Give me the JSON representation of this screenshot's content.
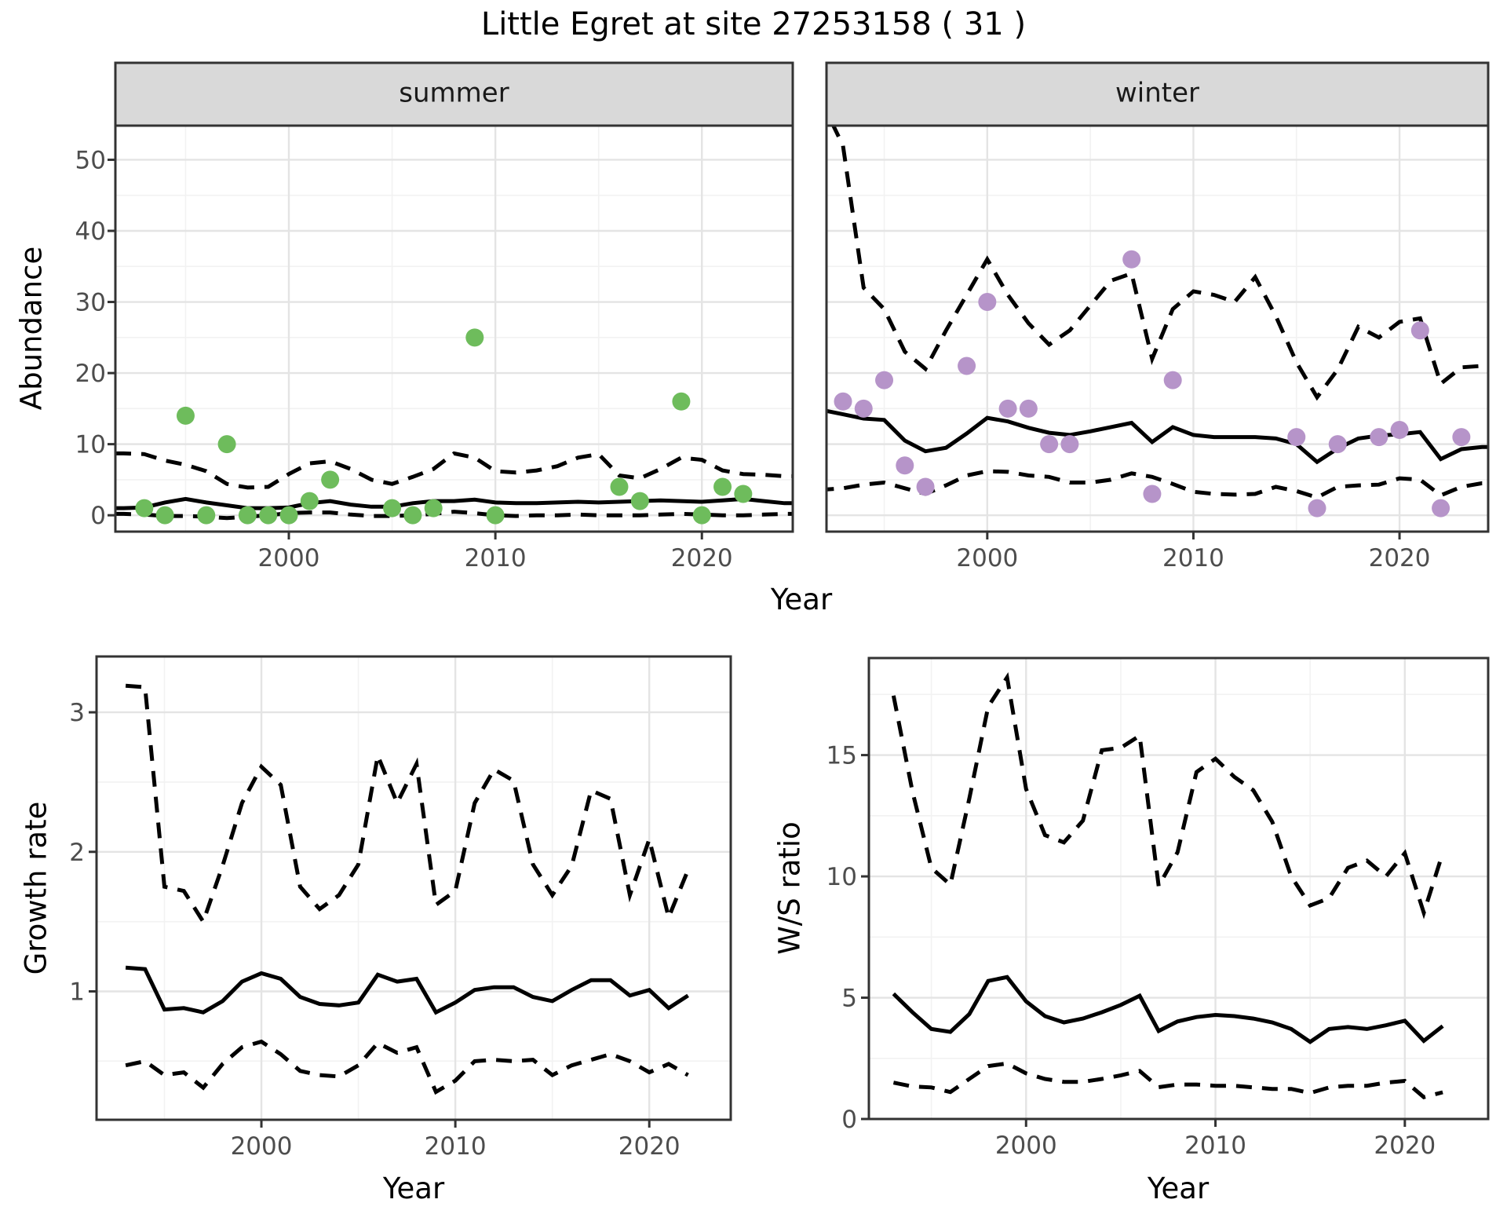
{
  "title": "Little Egret at site 27253158 ( 31 )",
  "colors": {
    "summer_point": "#6ebc5c",
    "winter_point": "#b694c9",
    "line": "#000000",
    "strip_bg": "#d9d9d9",
    "panel_bg": "#ffffff",
    "grid_major": "#e4e4e4",
    "grid_minor": "#f2f2f2",
    "panel_border": "#333333",
    "tick_mark": "#333333",
    "tick_text": "#4d4d4d"
  },
  "axis": {
    "year_label": "Year",
    "abundance_label": "Abundance",
    "growth_label": "Growth rate",
    "ws_label": "W/S ratio",
    "x_tick_labels": [
      "2000",
      "2010",
      "2020"
    ],
    "abundance_tick_labels": [
      "0",
      "10",
      "20",
      "30",
      "40",
      "50"
    ],
    "growth_tick_labels": [
      "1",
      "2",
      "3"
    ],
    "ws_tick_labels": [
      "0",
      "5",
      "10",
      "15"
    ]
  },
  "facets": [
    {
      "label": "summer"
    },
    {
      "label": "winter"
    }
  ],
  "chart_data": [
    {
      "id": "abundance_summer",
      "type": "scatter",
      "title": "summer",
      "xlabel": "Year",
      "ylabel": "Abundance",
      "xlim": [
        1991.6,
        2024.4
      ],
      "ylim": [
        -2.3,
        54.8
      ],
      "x_major": [
        2000,
        2010,
        2020
      ],
      "x_minor": [
        1995,
        2005,
        2015
      ],
      "y_major": [
        0,
        10,
        20,
        30,
        40,
        50
      ],
      "y_minor": [
        5,
        15,
        25,
        35,
        45
      ],
      "points": {
        "years": [
          1993,
          1994,
          1995,
          1996,
          1997,
          1998,
          1999,
          2000,
          2001,
          2002,
          2005,
          2006,
          2007,
          2009,
          2010,
          2016,
          2017,
          2019,
          2020,
          2021,
          2022
        ],
        "values": [
          1,
          0,
          14,
          0,
          10,
          0,
          0,
          0,
          2,
          5,
          1,
          0,
          1,
          25,
          0,
          4,
          2,
          16,
          0,
          4,
          3
        ]
      },
      "fit_years": [
        1992,
        1993,
        1994,
        1995,
        1996,
        1997,
        1998,
        1999,
        2000,
        2001,
        2002,
        2003,
        2004,
        2005,
        2006,
        2007,
        2008,
        2009,
        2010,
        2011,
        2012,
        2013,
        2014,
        2015,
        2016,
        2017,
        2018,
        2019,
        2020,
        2021,
        2022,
        2023,
        2024
      ],
      "fit": [
        1.0,
        1.1,
        1.8,
        2.3,
        1.8,
        1.4,
        1.0,
        1.0,
        1.1,
        1.7,
        2.0,
        1.5,
        1.2,
        1.2,
        1.7,
        2.0,
        2.0,
        2.2,
        1.8,
        1.7,
        1.7,
        1.8,
        1.9,
        1.8,
        1.9,
        2.0,
        2.1,
        2.0,
        1.9,
        2.1,
        2.3,
        2.0,
        1.7
      ],
      "ci_hi": [
        8.7,
        8.6,
        7.7,
        7.1,
        6.2,
        4.4,
        3.9,
        4.0,
        5.8,
        7.3,
        7.6,
        6.5,
        5.0,
        4.4,
        5.4,
        6.5,
        8.7,
        8.1,
        6.2,
        6.0,
        6.3,
        6.9,
        8.1,
        8.6,
        5.6,
        5.2,
        6.5,
        8.1,
        7.8,
        6.3,
        5.8,
        5.7,
        5.5
      ],
      "ci_lo": [
        0.2,
        0.1,
        -0.1,
        -0.1,
        -0.2,
        -0.4,
        -0.2,
        0.0,
        0.3,
        0.4,
        0.4,
        0.1,
        -0.1,
        -0.1,
        0.0,
        0.2,
        0.5,
        0.3,
        0.0,
        -0.1,
        0.0,
        0.0,
        0.1,
        0.0,
        0.0,
        0.0,
        0.1,
        0.2,
        0.1,
        0.0,
        0.0,
        0.1,
        0.2
      ],
      "extend_to_edges": true
    },
    {
      "id": "abundance_winter",
      "type": "scatter",
      "title": "winter",
      "xlabel": "Year",
      "ylabel": "Abundance",
      "xlim": [
        1992.2,
        2024.3
      ],
      "ylim": [
        -2.3,
        54.8
      ],
      "x_major": [
        2000,
        2010,
        2020
      ],
      "x_minor": [
        1995,
        2005,
        2015
      ],
      "y_major": [
        0,
        10,
        20,
        30,
        40,
        50
      ],
      "y_minor": [
        5,
        15,
        25,
        35,
        45
      ],
      "points": {
        "years": [
          1993,
          1994,
          1995,
          1996,
          1997,
          1999,
          2000,
          2001,
          2002,
          2003,
          2004,
          2007,
          2008,
          2009,
          2015,
          2016,
          2017,
          2019,
          2020,
          2021,
          2022,
          2023
        ],
        "values": [
          16,
          15,
          19,
          7,
          4,
          21,
          30,
          15,
          15,
          10,
          10,
          36,
          3,
          19,
          11,
          1,
          10,
          11,
          12,
          26,
          1,
          11
        ]
      },
      "fit_years": [
        1992,
        1993,
        1994,
        1995,
        1996,
        1997,
        1998,
        1999,
        2000,
        2001,
        2002,
        2003,
        2004,
        2005,
        2006,
        2007,
        2008,
        2009,
        2010,
        2011,
        2012,
        2013,
        2014,
        2015,
        2016,
        2017,
        2018,
        2019,
        2020,
        2021,
        2022,
        2023,
        2024
      ],
      "fit": [
        14.8,
        14.2,
        13.6,
        13.4,
        10.5,
        9.0,
        9.5,
        11.5,
        13.7,
        13.2,
        12.3,
        11.6,
        11.3,
        11.8,
        12.4,
        13.0,
        10.3,
        12.4,
        11.3,
        11.0,
        11.0,
        11.0,
        10.8,
        10.0,
        7.5,
        9.4,
        10.8,
        11.2,
        11.4,
        11.7,
        7.9,
        9.3,
        9.6
      ],
      "ci_hi": [
        58,
        52,
        32,
        29,
        23,
        20.6,
        26,
        31,
        36,
        31,
        27,
        24,
        26,
        29.5,
        33,
        34,
        22,
        29,
        31.5,
        31,
        30,
        33.5,
        28,
        21.5,
        16.6,
        20.5,
        26.5,
        25,
        27.2,
        27.7,
        18.5,
        20.8,
        21
      ],
      "ci_lo": [
        3.6,
        3.8,
        4.3,
        4.6,
        3.8,
        3.0,
        4.2,
        5.6,
        6.2,
        6.1,
        5.6,
        5.4,
        4.6,
        4.6,
        5.0,
        5.9,
        5.4,
        4.4,
        3.3,
        3.0,
        2.9,
        3.0,
        4.0,
        3.4,
        2.5,
        4.0,
        4.2,
        4.3,
        5.2,
        5.0,
        2.8,
        4.0,
        4.5
      ],
      "extend_to_edges": true
    },
    {
      "id": "growth_rate",
      "type": "line",
      "title": "",
      "xlabel": "Year",
      "ylabel": "Growth rate",
      "xlim": [
        1991.5,
        2024.2
      ],
      "ylim": [
        0.08,
        3.4
      ],
      "x_major": [
        2000,
        2010,
        2020
      ],
      "x_minor": [
        1995,
        2005,
        2015
      ],
      "y_major": [
        1,
        2,
        3
      ],
      "y_minor": [
        0.5,
        1.5,
        2.5
      ],
      "fit_years": [
        1993,
        1994,
        1995,
        1996,
        1997,
        1998,
        1999,
        2000,
        2001,
        2002,
        2003,
        2004,
        2005,
        2006,
        2007,
        2008,
        2009,
        2010,
        2011,
        2012,
        2013,
        2014,
        2015,
        2016,
        2017,
        2018,
        2019,
        2020,
        2021,
        2022
      ],
      "fit": [
        1.17,
        1.16,
        0.87,
        0.88,
        0.85,
        0.93,
        1.07,
        1.13,
        1.09,
        0.96,
        0.91,
        0.9,
        0.92,
        1.12,
        1.07,
        1.09,
        0.85,
        0.92,
        1.01,
        1.03,
        1.03,
        0.96,
        0.93,
        1.01,
        1.08,
        1.08,
        0.97,
        1.01,
        0.88,
        0.97
      ],
      "ci_hi": [
        3.19,
        3.18,
        1.75,
        1.72,
        1.5,
        1.9,
        2.35,
        2.61,
        2.48,
        1.75,
        1.59,
        1.69,
        1.91,
        2.69,
        2.35,
        2.63,
        1.62,
        1.72,
        2.35,
        2.59,
        2.51,
        1.91,
        1.69,
        1.9,
        2.44,
        2.38,
        1.69,
        2.09,
        1.53,
        1.87
      ],
      "ci_lo": [
        0.47,
        0.5,
        0.4,
        0.42,
        0.31,
        0.48,
        0.6,
        0.64,
        0.55,
        0.43,
        0.4,
        0.39,
        0.47,
        0.63,
        0.56,
        0.6,
        0.28,
        0.36,
        0.5,
        0.51,
        0.5,
        0.51,
        0.4,
        0.47,
        0.51,
        0.55,
        0.5,
        0.42,
        0.48,
        0.4
      ],
      "extend_to_edges": false
    },
    {
      "id": "ws_ratio",
      "type": "line",
      "title": "",
      "xlabel": "Year",
      "ylabel": "W/S ratio",
      "xlim": [
        1991.7,
        2024.4
      ],
      "ylim": [
        0,
        19
      ],
      "x_major": [
        2000,
        2010,
        2020
      ],
      "x_minor": [
        1995,
        2005,
        2015
      ],
      "y_major": [
        0,
        5,
        10,
        15
      ],
      "y_minor": [
        2.5,
        7.5,
        12.5,
        17.5
      ],
      "fit_years": [
        1993,
        1994,
        1995,
        1996,
        1997,
        1998,
        1999,
        2000,
        2001,
        2002,
        2003,
        2004,
        2005,
        2006,
        2007,
        2008,
        2009,
        2010,
        2011,
        2012,
        2013,
        2014,
        2015,
        2016,
        2017,
        2018,
        2019,
        2020,
        2021,
        2022
      ],
      "fit": [
        5.16,
        4.4,
        3.71,
        3.59,
        4.32,
        5.69,
        5.85,
        4.85,
        4.24,
        3.98,
        4.14,
        4.4,
        4.7,
        5.08,
        3.63,
        4.02,
        4.2,
        4.29,
        4.24,
        4.14,
        3.98,
        3.71,
        3.18,
        3.71,
        3.79,
        3.71,
        3.86,
        4.05,
        3.22,
        3.83
      ],
      "ci_hi": [
        17.45,
        13.5,
        10.35,
        9.66,
        13.2,
        17.0,
        18.2,
        13.6,
        11.7,
        11.4,
        12.3,
        15.2,
        15.3,
        15.8,
        9.6,
        11.0,
        14.3,
        14.85,
        14.1,
        13.55,
        12.25,
        10.0,
        8.8,
        9.1,
        10.35,
        10.65,
        10.0,
        10.96,
        8.5,
        10.96
      ],
      "ci_lo": [
        1.5,
        1.34,
        1.3,
        1.11,
        1.65,
        2.18,
        2.29,
        1.88,
        1.65,
        1.53,
        1.53,
        1.65,
        1.8,
        1.98,
        1.31,
        1.42,
        1.42,
        1.37,
        1.37,
        1.3,
        1.24,
        1.24,
        1.07,
        1.3,
        1.37,
        1.37,
        1.5,
        1.57,
        0.9,
        1.1
      ]
    }
  ]
}
